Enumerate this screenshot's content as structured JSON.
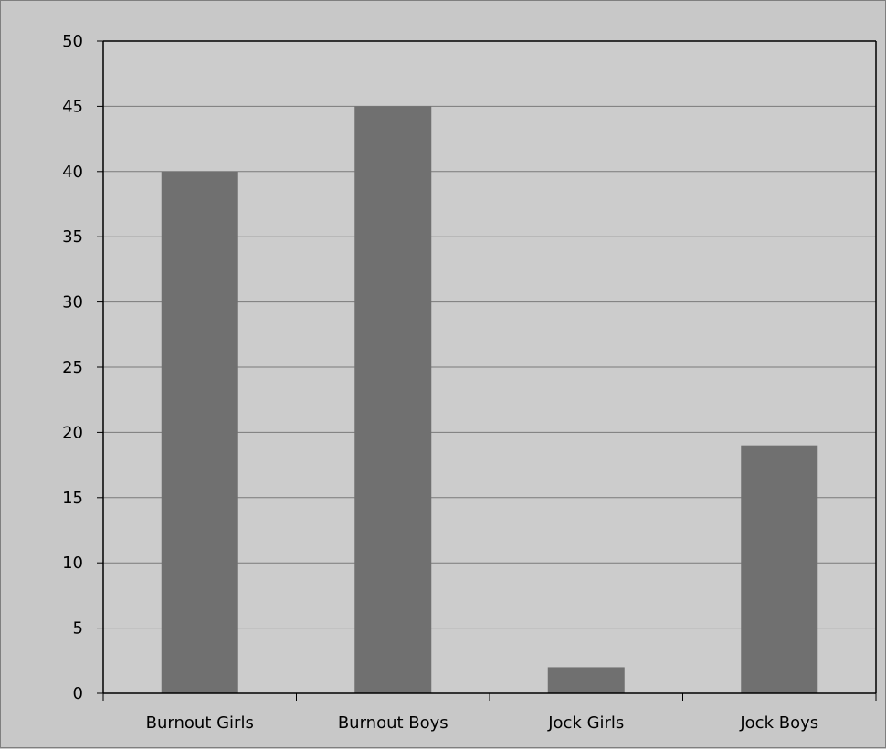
{
  "chart_data": {
    "type": "bar",
    "categories": [
      "Burnout Girls",
      "Burnout Boys",
      "Jock Girls",
      "Jock Boys"
    ],
    "values": [
      40,
      45,
      2,
      19
    ],
    "title": "",
    "xlabel": "",
    "ylabel": "",
    "ylim": [
      0,
      50
    ],
    "yticks": [
      0,
      5,
      10,
      15,
      20,
      25,
      30,
      35,
      40,
      45,
      50
    ],
    "grid": true,
    "legend": "none"
  },
  "colors": {
    "background": "#c8c8c8",
    "plot_area": "#cccccc",
    "bar": "#707070",
    "gridline": "#7a7a7a",
    "axis": "#000000"
  }
}
